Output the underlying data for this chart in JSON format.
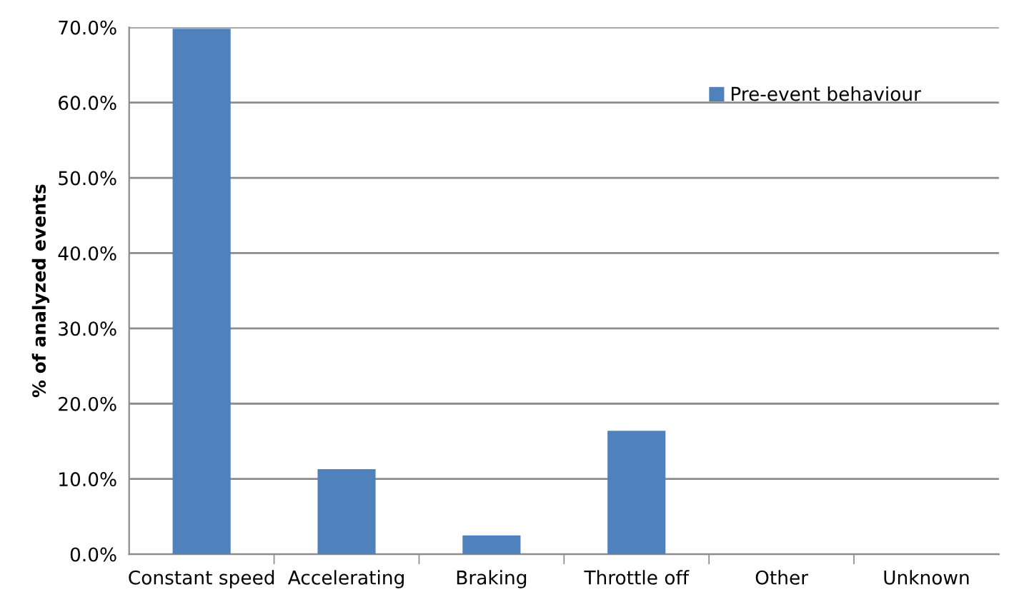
{
  "chart_data": {
    "type": "bar",
    "ylabel": "% of analyzed events",
    "categories": [
      "Constant speed",
      "Accelerating",
      "Braking",
      "Throttle off",
      "Other",
      "Unknown"
    ],
    "series": [
      {
        "name": "Pre-event behaviour",
        "color": "#4f81bd",
        "values": [
          69.8,
          11.3,
          2.5,
          16.4,
          0,
          0
        ]
      }
    ],
    "ylim": [
      0,
      70
    ],
    "yticks": [
      {
        "value": 0,
        "label": "0.0%"
      },
      {
        "value": 10,
        "label": "10.0%"
      },
      {
        "value": 20,
        "label": "20.0%"
      },
      {
        "value": 30,
        "label": "30.0%"
      },
      {
        "value": 40,
        "label": "40.0%"
      },
      {
        "value": 50,
        "label": "50.0%"
      },
      {
        "value": 60,
        "label": "60.0%"
      },
      {
        "value": 70,
        "label": "70.0%"
      }
    ],
    "grid": "y",
    "legend": "top right"
  }
}
